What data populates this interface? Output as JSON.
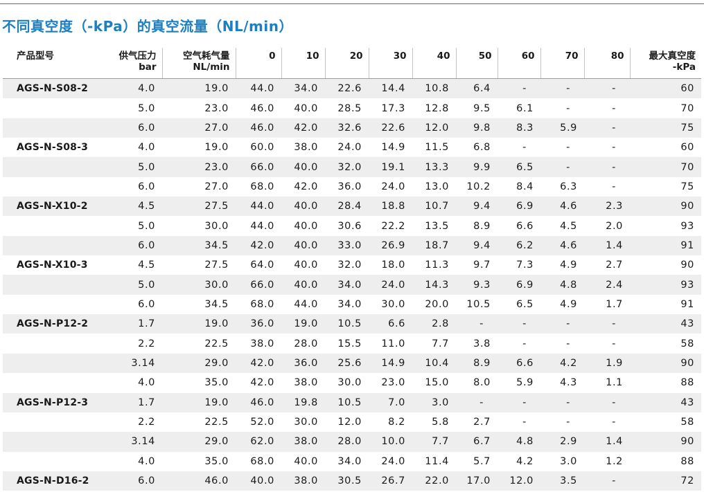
{
  "title": "不同真空度（-kPa）的真空流量（NL/min）",
  "headers": {
    "model": "产品型号",
    "pressure": "供气压力",
    "pressure_unit": "bar",
    "consumption": "空气耗气量",
    "consumption_unit": "NL/min",
    "vacuum_levels": [
      "0",
      "10",
      "20",
      "30",
      "40",
      "50",
      "60",
      "70",
      "80"
    ],
    "max_vacuum": "最大真空度",
    "max_vacuum_unit": "-kPa"
  },
  "rows": [
    [
      "AGS-N-S08-2",
      "4.0",
      "19.0",
      "44.0",
      "34.0",
      "22.6",
      "14.4",
      "10.8",
      "6.4",
      "-",
      "-",
      "-",
      "60"
    ],
    [
      "",
      "5.0",
      "23.0",
      "46.0",
      "40.0",
      "28.5",
      "17.3",
      "12.8",
      "9.5",
      "6.1",
      "-",
      "-",
      "70"
    ],
    [
      "",
      "6.0",
      "27.0",
      "46.0",
      "42.0",
      "32.6",
      "22.6",
      "12.0",
      "9.8",
      "8.3",
      "5.9",
      "-",
      "75"
    ],
    [
      "AGS-N-S08-3",
      "4.0",
      "19.0",
      "60.0",
      "38.0",
      "24.0",
      "14.9",
      "11.5",
      "6.8",
      "-",
      "-",
      "-",
      "60"
    ],
    [
      "",
      "5.0",
      "23.0",
      "66.0",
      "40.0",
      "32.0",
      "19.1",
      "13.3",
      "9.9",
      "6.5",
      "-",
      "-",
      "70"
    ],
    [
      "",
      "6.0",
      "27.0",
      "68.0",
      "42.0",
      "36.0",
      "24.0",
      "13.0",
      "10.2",
      "8.4",
      "6.3",
      "-",
      "75"
    ],
    [
      "AGS-N-X10-2",
      "4.5",
      "27.5",
      "44.0",
      "40.0",
      "28.4",
      "18.8",
      "10.7",
      "9.4",
      "6.9",
      "4.6",
      "2.3",
      "90"
    ],
    [
      "",
      "5.0",
      "30.0",
      "44.0",
      "40.0",
      "30.6",
      "22.2",
      "13.5",
      "8.9",
      "6.6",
      "4.5",
      "2.0",
      "93"
    ],
    [
      "",
      "6.0",
      "34.5",
      "42.0",
      "40.0",
      "33.0",
      "26.9",
      "18.7",
      "9.4",
      "6.2",
      "4.6",
      "1.4",
      "91"
    ],
    [
      "AGS-N-X10-3",
      "4.5",
      "27.5",
      "64.0",
      "40.0",
      "32.0",
      "18.0",
      "11.3",
      "9.7",
      "7.3",
      "4.9",
      "2.7",
      "90"
    ],
    [
      "",
      "5.0",
      "30.0",
      "66.0",
      "40.0",
      "34.0",
      "24.0",
      "14.3",
      "9.3",
      "6.9",
      "4.8",
      "2.4",
      "93"
    ],
    [
      "",
      "6.0",
      "34.5",
      "68.0",
      "44.0",
      "34.0",
      "30.0",
      "20.0",
      "10.5",
      "6.5",
      "4.9",
      "1.7",
      "91"
    ],
    [
      "AGS-N-P12-2",
      "1.7",
      "19.0",
      "36.0",
      "19.0",
      "10.5",
      "6.6",
      "2.8",
      "-",
      "-",
      "-",
      "-",
      "43"
    ],
    [
      "",
      "2.2",
      "22.5",
      "38.0",
      "28.0",
      "15.5",
      "11.0",
      "7.7",
      "3.8",
      "-",
      "-",
      "-",
      "58"
    ],
    [
      "",
      "3.14",
      "29.0",
      "42.0",
      "36.0",
      "25.6",
      "14.9",
      "10.4",
      "8.9",
      "6.6",
      "4.2",
      "1.9",
      "90"
    ],
    [
      "",
      "4.0",
      "35.0",
      "42.0",
      "38.0",
      "30.0",
      "23.0",
      "15.0",
      "8.0",
      "5.9",
      "4.3",
      "1.1",
      "88"
    ],
    [
      "AGS-N-P12-3",
      "1.7",
      "19.0",
      "46.0",
      "19.8",
      "10.5",
      "7.0",
      "3.0",
      "-",
      "-",
      "-",
      "-",
      "43"
    ],
    [
      "",
      "2.2",
      "22.5",
      "52.0",
      "30.0",
      "12.0",
      "8.2",
      "5.8",
      "2.7",
      "-",
      "-",
      "-",
      "58"
    ],
    [
      "",
      "3.14",
      "29.0",
      "62.0",
      "38.0",
      "28.0",
      "10.0",
      "7.7",
      "6.7",
      "4.8",
      "2.9",
      "1.4",
      "90"
    ],
    [
      "",
      "4.0",
      "35.0",
      "68.0",
      "40.0",
      "34.0",
      "24.0",
      "11.4",
      "5.7",
      "4.2",
      "3.0",
      "1.2",
      "88"
    ],
    [
      "AGS-N-D16-2",
      "6.0",
      "46.0",
      "40.0",
      "38.0",
      "30.5",
      "26.7",
      "22.0",
      "17.0",
      "12.0",
      "3.5",
      "-",
      "72"
    ]
  ],
  "colors": {
    "accent": "#1d7fc0",
    "row_shade": "#eeeeee",
    "text": "#1a1a1a"
  }
}
